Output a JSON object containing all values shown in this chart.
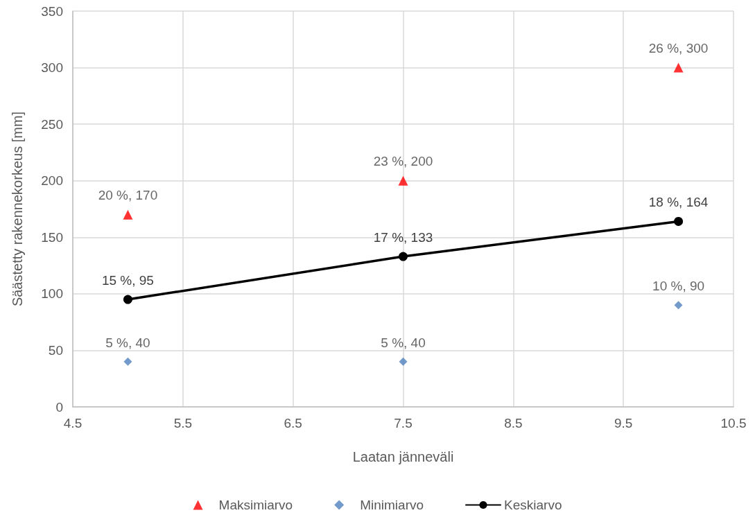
{
  "chart_data": {
    "type": "scatter",
    "xlabel": "Laatan jänneväli",
    "ylabel": "Säästetty rakennekorkeus [mm]",
    "xlim": [
      4.5,
      10.5
    ],
    "xticks": [
      4.5,
      5.5,
      6.5,
      7.5,
      8.5,
      9.5,
      10.5
    ],
    "ylim": [
      0,
      350
    ],
    "yticks": [
      0,
      50,
      100,
      150,
      200,
      250,
      300,
      350
    ],
    "grid": true,
    "legend": "bottom",
    "x": [
      5,
      7.5,
      10
    ],
    "series": [
      {
        "name": "Maksimiarvo",
        "marker": "triangle",
        "color": "#ff0000",
        "values": [
          170,
          200,
          300
        ],
        "value_labels": [
          "20 %, 170",
          "23 %, 200",
          "26 %, 300"
        ]
      },
      {
        "name": "Minimiarvo",
        "marker": "diamond",
        "color": "#4f81bd",
        "values": [
          40,
          40,
          90
        ],
        "value_labels": [
          "5 %, 40",
          "5 %, 40",
          "10 %, 90"
        ]
      },
      {
        "name": "Keskiarvo",
        "type": "line",
        "marker": "circle",
        "line_style": "solid",
        "color": "#000000",
        "values": [
          95,
          133,
          164
        ],
        "value_labels": [
          "15 %, 95",
          "17 %, 133",
          "18 %, 164"
        ]
      }
    ]
  }
}
